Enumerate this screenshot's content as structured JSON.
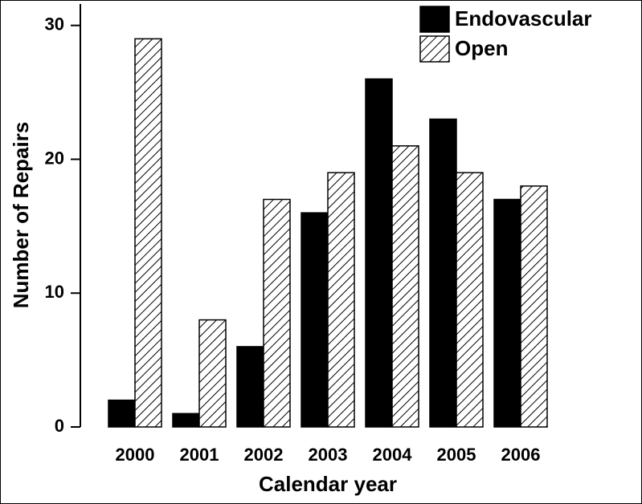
{
  "chart_data": {
    "type": "bar",
    "x_label": "Calendar year",
    "y_label": "Number of Repairs",
    "categories": [
      "2000",
      "2001",
      "2002",
      "2003",
      "2004",
      "2005",
      "2006"
    ],
    "series": [
      {
        "name": "Endovascular",
        "color": "#000000",
        "hatch": false,
        "values": [
          2,
          1,
          6,
          16,
          26,
          23,
          17
        ]
      },
      {
        "name": "Open",
        "color": "#ffffff",
        "hatch": true,
        "values": [
          29,
          8,
          17,
          19,
          21,
          19,
          18
        ]
      }
    ],
    "ylim": [
      0,
      31.6
    ],
    "yticks": [
      0,
      10,
      20,
      30
    ],
    "grid": false,
    "legend": "upper right"
  }
}
